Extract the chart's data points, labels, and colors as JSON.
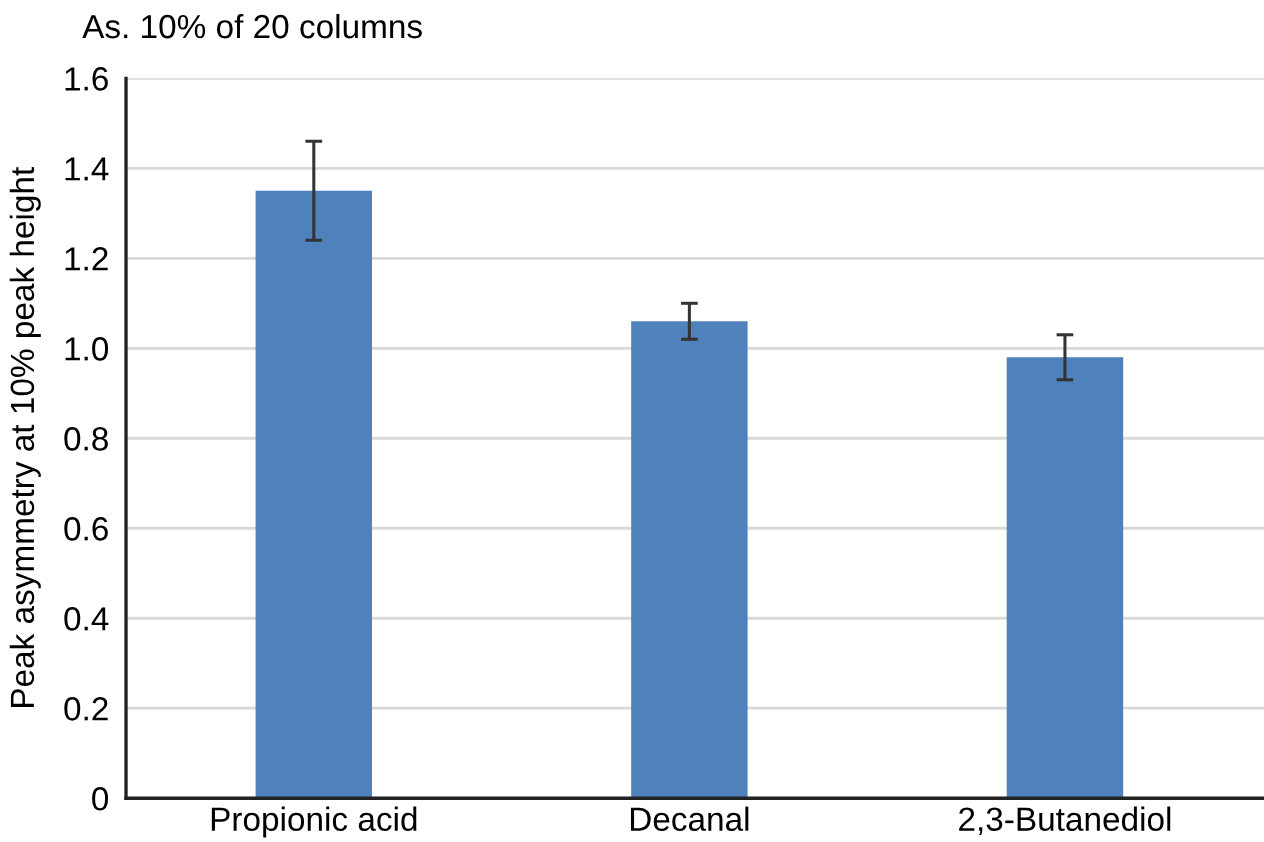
{
  "chart_data": {
    "type": "bar",
    "title": "As. 10% of 20 columns",
    "ylabel": "Peak asymmetry at 10% peak height",
    "categories": [
      "Propionic acid",
      "Decanal",
      "2,3-Butanediol"
    ],
    "values": [
      1.35,
      1.06,
      0.98
    ],
    "errors": [
      0.11,
      0.04,
      0.05
    ],
    "color": "#4f81bd",
    "ylim": [
      0,
      1.6
    ],
    "yticks": [
      {
        "value": 0,
        "label": "0"
      },
      {
        "value": 0.2,
        "label": "0.2"
      },
      {
        "value": 0.4,
        "label": "0.4"
      },
      {
        "value": 0.6,
        "label": "0.6"
      },
      {
        "value": 0.8,
        "label": "0.8"
      },
      {
        "value": 1.0,
        "label": "1.0"
      },
      {
        "value": 1.2,
        "label": "1.2"
      },
      {
        "value": 1.4,
        "label": "1.4"
      },
      {
        "value": 1.6,
        "label": "1.6"
      }
    ],
    "grid": "y",
    "legend": false
  }
}
